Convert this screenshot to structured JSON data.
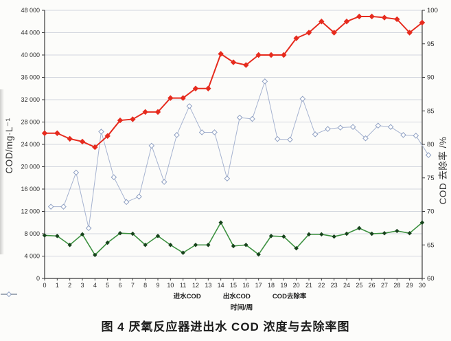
{
  "figure": {
    "caption": "图 4  厌氧反应器进出水 COD 浓度与去除率图"
  },
  "chart_data": {
    "type": "line",
    "xlabel": "时间/周",
    "ylabel_left": "COD/mg·L⁻¹",
    "ylabel_right": "COD 去除率 /%",
    "x": [
      0,
      1,
      2,
      3,
      4,
      5,
      6,
      7,
      8,
      9,
      10,
      11,
      12,
      13,
      14,
      15,
      16,
      17,
      18,
      19,
      20,
      21,
      22,
      23,
      24,
      25,
      26,
      27,
      28,
      29,
      30
    ],
    "xlim": [
      0,
      30
    ],
    "ylim_left": [
      0,
      48000
    ],
    "ylim_right": [
      60,
      100
    ],
    "ytick_step_left": 4000,
    "ytick_step_right": 5,
    "ytick_labels_left": [
      "0",
      "4 000",
      "8 000",
      "12 000",
      "16 000",
      "20 000",
      "24 000",
      "28 000",
      "32 000",
      "36 000",
      "40 000",
      "44 000",
      "48 000"
    ],
    "ytick_labels_right": [
      "60",
      "65",
      "70",
      "75",
      "80",
      "85",
      "90",
      "95",
      "100"
    ],
    "grid": "horizontal",
    "legend_position": "bottom",
    "series": [
      {
        "key": "removal-rate",
        "name": "COD去除率",
        "axis": "right",
        "color": "#a6b3d0",
        "marker": "diamond-open",
        "marker_color": "#8fa0c2",
        "x_offset": 0.5,
        "values": [
          70.7,
          70.7,
          75.8,
          67.5,
          81.9,
          75.1,
          71.4,
          72.2,
          79.8,
          74.4,
          81.4,
          85.7,
          81.8,
          81.8,
          74.9,
          84.0,
          83.8,
          89.4,
          80.8,
          80.7,
          86.8,
          81.5,
          82.3,
          82.5,
          82.6,
          80.9,
          82.8,
          82.6,
          81.4,
          81.3,
          78.4
        ]
      },
      {
        "key": "effluent-cod",
        "name": "出水COD",
        "axis": "left",
        "color": "#3d9140",
        "marker": "diamond-filled",
        "marker_color": "#17431c",
        "x_offset": 0,
        "values": [
          7700,
          7600,
          6000,
          7900,
          4200,
          6400,
          8100,
          8000,
          6000,
          7600,
          6000,
          4600,
          6000,
          6000,
          10000,
          5800,
          6000,
          4300,
          7600,
          7500,
          5400,
          7900,
          7900,
          7500,
          8000,
          9000,
          8000,
          8100,
          8500,
          8100,
          10000
        ]
      },
      {
        "key": "influent-cod",
        "name": "进水COD",
        "axis": "left",
        "color": "#e62b1e",
        "marker": "diamond-filled",
        "marker_color": "#e62b1e",
        "x_offset": 0,
        "values": [
          26000,
          26000,
          25000,
          24500,
          23500,
          25500,
          28300,
          28500,
          29800,
          29800,
          32300,
          32300,
          34000,
          34000,
          40200,
          38700,
          38200,
          40000,
          40000,
          40000,
          43000,
          44000,
          46000,
          44000,
          46000,
          46900,
          46900,
          46700,
          46400,
          44000,
          45800
        ]
      }
    ]
  }
}
